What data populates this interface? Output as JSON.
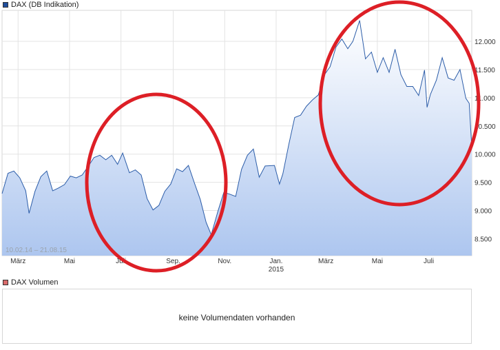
{
  "legend_main": {
    "label": "DAX (DB Indikation)",
    "color": "#1f4e9c"
  },
  "legend_volume": {
    "label": "DAX Volumen",
    "color": "#d86a6a"
  },
  "date_range": "10.02.14 – 21.08.15",
  "volume_message": "keine Volumendaten vorhanden",
  "chart_data": {
    "type": "area",
    "title": "DAX (DB Indikation)",
    "xlabel": "",
    "ylabel": "",
    "ylim": [
      8200,
      12550
    ],
    "x_ticks": [
      {
        "label": "März",
        "date": "2014-03-01"
      },
      {
        "label": "Mai",
        "date": "2014-05-01"
      },
      {
        "label": "Juli",
        "date": "2014-07-01"
      },
      {
        "label": "Sep.",
        "date": "2014-09-01"
      },
      {
        "label": "Nov.",
        "date": "2014-11-01"
      },
      {
        "label": "Jan.",
        "date": "2015-01-01",
        "sublabel": "2015"
      },
      {
        "label": "März",
        "date": "2015-03-01"
      },
      {
        "label": "Mai",
        "date": "2015-05-01"
      },
      {
        "label": "Juli",
        "date": "2015-07-01"
      }
    ],
    "y_ticks": [
      {
        "label": "8.500",
        "value": 8500
      },
      {
        "label": "9.000",
        "value": 9000
      },
      {
        "label": "9.500",
        "value": 9500
      },
      {
        "label": "10.000",
        "value": 10000
      },
      {
        "label": "10.500",
        "value": 10500
      },
      {
        "label": "11.000",
        "value": 11000
      },
      {
        "label": "11.500",
        "value": 11500
      },
      {
        "label": "12.000",
        "value": 12000
      }
    ],
    "grid": true,
    "series": [
      {
        "line_color": "#2b5ca8",
        "points": [
          [
            "2014-02-10",
            9300
          ],
          [
            "2014-02-17",
            9660
          ],
          [
            "2014-02-24",
            9700
          ],
          [
            "2014-03-03",
            9580
          ],
          [
            "2014-03-10",
            9350
          ],
          [
            "2014-03-14",
            8950
          ],
          [
            "2014-03-21",
            9340
          ],
          [
            "2014-03-28",
            9600
          ],
          [
            "2014-04-04",
            9700
          ],
          [
            "2014-04-11",
            9350
          ],
          [
            "2014-04-18",
            9400
          ],
          [
            "2014-04-25",
            9460
          ],
          [
            "2014-05-02",
            9610
          ],
          [
            "2014-05-09",
            9580
          ],
          [
            "2014-05-16",
            9630
          ],
          [
            "2014-05-23",
            9780
          ],
          [
            "2014-05-30",
            9940
          ],
          [
            "2014-06-06",
            9980
          ],
          [
            "2014-06-13",
            9900
          ],
          [
            "2014-06-20",
            9980
          ],
          [
            "2014-06-27",
            9820
          ],
          [
            "2014-07-03",
            10020
          ],
          [
            "2014-07-11",
            9670
          ],
          [
            "2014-07-18",
            9720
          ],
          [
            "2014-07-25",
            9630
          ],
          [
            "2014-08-01",
            9210
          ],
          [
            "2014-08-08",
            9010
          ],
          [
            "2014-08-15",
            9090
          ],
          [
            "2014-08-22",
            9340
          ],
          [
            "2014-08-29",
            9470
          ],
          [
            "2014-09-05",
            9740
          ],
          [
            "2014-09-12",
            9690
          ],
          [
            "2014-09-19",
            9800
          ],
          [
            "2014-09-26",
            9490
          ],
          [
            "2014-10-03",
            9200
          ],
          [
            "2014-10-10",
            8790
          ],
          [
            "2014-10-16",
            8570
          ],
          [
            "2014-10-24",
            8990
          ],
          [
            "2014-10-31",
            9320
          ],
          [
            "2014-11-07",
            9290
          ],
          [
            "2014-11-14",
            9250
          ],
          [
            "2014-11-21",
            9730
          ],
          [
            "2014-11-28",
            9980
          ],
          [
            "2014-12-05",
            10090
          ],
          [
            "2014-12-12",
            9590
          ],
          [
            "2014-12-19",
            9790
          ],
          [
            "2014-12-30",
            9800
          ],
          [
            "2015-01-05",
            9470
          ],
          [
            "2015-01-09",
            9650
          ],
          [
            "2015-01-16",
            10170
          ],
          [
            "2015-01-23",
            10650
          ],
          [
            "2015-01-30",
            10690
          ],
          [
            "2015-02-06",
            10850
          ],
          [
            "2015-02-13",
            10960
          ],
          [
            "2015-02-20",
            11050
          ],
          [
            "2015-02-27",
            11400
          ],
          [
            "2015-03-06",
            11550
          ],
          [
            "2015-03-13",
            11900
          ],
          [
            "2015-03-20",
            12040
          ],
          [
            "2015-03-27",
            11870
          ],
          [
            "2015-04-02",
            12000
          ],
          [
            "2015-04-10",
            12370
          ],
          [
            "2015-04-17",
            11690
          ],
          [
            "2015-04-24",
            11810
          ],
          [
            "2015-05-01",
            11450
          ],
          [
            "2015-05-08",
            11710
          ],
          [
            "2015-05-15",
            11450
          ],
          [
            "2015-05-22",
            11860
          ],
          [
            "2015-05-29",
            11410
          ],
          [
            "2015-06-05",
            11200
          ],
          [
            "2015-06-12",
            11200
          ],
          [
            "2015-06-19",
            11040
          ],
          [
            "2015-06-26",
            11490
          ],
          [
            "2015-06-29",
            10830
          ],
          [
            "2015-07-03",
            11060
          ],
          [
            "2015-07-10",
            11310
          ],
          [
            "2015-07-17",
            11710
          ],
          [
            "2015-07-24",
            11350
          ],
          [
            "2015-07-31",
            11310
          ],
          [
            "2015-08-07",
            11500
          ],
          [
            "2015-08-14",
            10990
          ],
          [
            "2015-08-18",
            10900
          ],
          [
            "2015-08-21",
            10120
          ]
        ]
      }
    ]
  },
  "annotations": [
    {
      "type": "ellipse-highlight",
      "color": "#dd1f26"
    },
    {
      "type": "ellipse-highlight",
      "color": "#dd1f26"
    }
  ]
}
